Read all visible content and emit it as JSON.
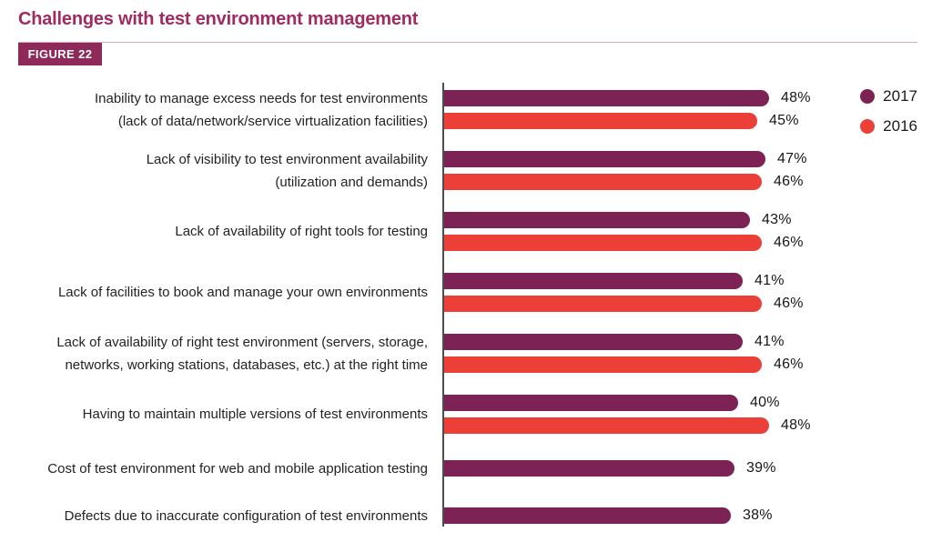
{
  "header": {
    "title": "Challenges with test environment management",
    "figure_label": "FIGURE 22"
  },
  "colors": {
    "title_text": "#a12b60",
    "figure_badge_bg": "#8e2a59",
    "figure_badge_text": "#ffffff",
    "header_rule": "#d9abc2",
    "axis_line": "#4d4d4f",
    "bar_2017": "#7d2255",
    "bar_2016": "#ec3f38",
    "value_text": "#161616",
    "category_text": "#232323"
  },
  "chart_data": {
    "type": "bar",
    "orientation": "horizontal",
    "unit": "%",
    "grid": false,
    "legend_position": "top-right",
    "categories": [
      {
        "label": "Inability to manage excess needs for test environments (lack of data/network/service virtualization facilities)",
        "lines": [
          "Inability to manage excess needs for test environments",
          "(lack of data/network/service virtualization facilities)"
        ]
      },
      {
        "label": "Lack of visibility to test environment availability (utilization and demands)",
        "lines": [
          "Lack of visibility to test environment availability",
          "(utilization and demands)"
        ]
      },
      {
        "label": "Lack of availability of right tools for testing",
        "lines": [
          "Lack of availability of right tools for testing"
        ]
      },
      {
        "label": "Lack of facilities to book and manage your own environments",
        "lines": [
          "Lack of facilities to book and manage your own environments"
        ]
      },
      {
        "label": "Lack of availability of right test environment (servers, storage, networks, working stations, databases, etc.) at the right time",
        "lines": [
          "Lack of availability of right test environment (servers, storage,",
          "networks, working stations, databases, etc.) at the right time"
        ]
      },
      {
        "label": "Having to maintain multiple versions of test environments",
        "lines": [
          "Having to maintain multiple versions of test environments"
        ]
      },
      {
        "label": "Cost of test environment for web and mobile application testing",
        "lines": [
          "Cost of test environment for web and mobile application testing"
        ]
      },
      {
        "label": "Defects due to inaccurate configuration of test environments",
        "lines": [
          "Defects due to inaccurate configuration of test environments"
        ]
      }
    ],
    "series": [
      {
        "name": "2017",
        "color": "#7d2255",
        "values": [
          48,
          47,
          43,
          41,
          41,
          40,
          39,
          38
        ]
      },
      {
        "name": "2016",
        "color": "#ec3f38",
        "values": [
          45,
          46,
          46,
          46,
          46,
          48,
          null,
          null
        ]
      }
    ]
  }
}
